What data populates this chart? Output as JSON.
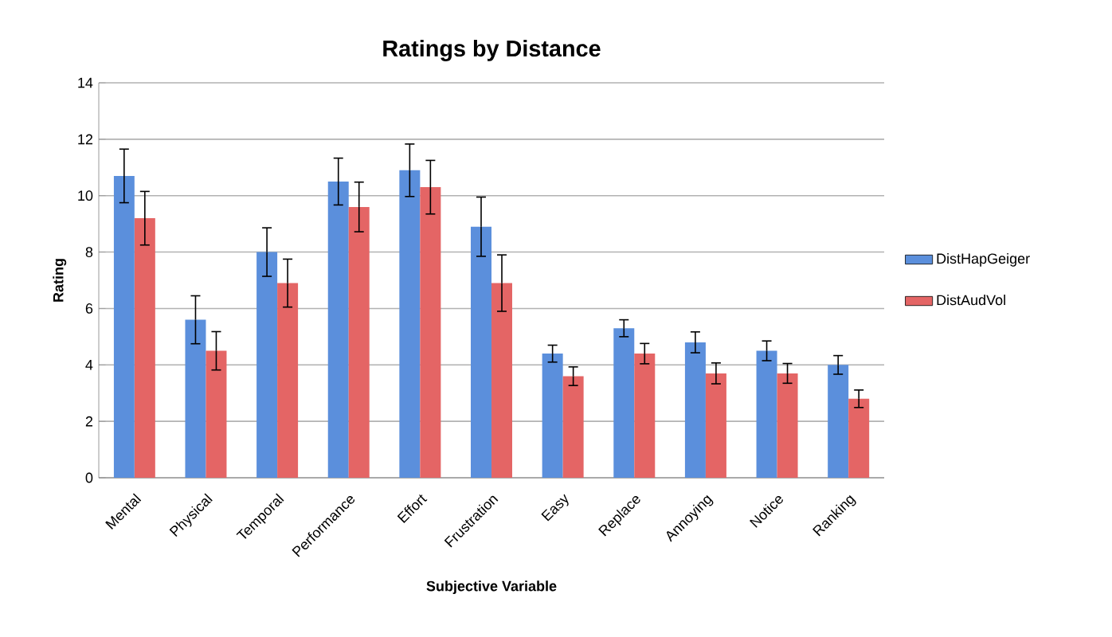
{
  "chart_data": {
    "type": "bar",
    "title": "Ratings by Distance",
    "xlabel": "Subjective Variable",
    "ylabel": "Rating",
    "categories": [
      "Mental",
      "Physical",
      "Temporal",
      "Performance",
      "Effort",
      "Frustration",
      "Easy",
      "Replace",
      "Annoying",
      "Notice",
      "Ranking"
    ],
    "series": [
      {
        "name": "DistHapGeiger",
        "color": "#5b8fdc",
        "values": [
          10.7,
          5.6,
          8.0,
          10.5,
          10.9,
          8.9,
          4.4,
          5.3,
          4.8,
          4.5,
          4.0
        ],
        "errors": [
          0.95,
          0.85,
          0.86,
          0.83,
          0.93,
          1.05,
          0.3,
          0.3,
          0.37,
          0.35,
          0.33
        ]
      },
      {
        "name": "DistAudVol",
        "color": "#e46565",
        "values": [
          9.2,
          4.5,
          6.9,
          9.6,
          10.3,
          6.9,
          3.6,
          4.4,
          3.7,
          3.7,
          2.8
        ],
        "errors": [
          0.95,
          0.68,
          0.85,
          0.88,
          0.95,
          1.0,
          0.33,
          0.36,
          0.37,
          0.35,
          0.31
        ]
      }
    ],
    "ylim": [
      0,
      14
    ],
    "yticks": [
      0,
      2,
      4,
      6,
      8,
      10,
      12,
      14
    ],
    "grid": "y",
    "legend": "right"
  }
}
